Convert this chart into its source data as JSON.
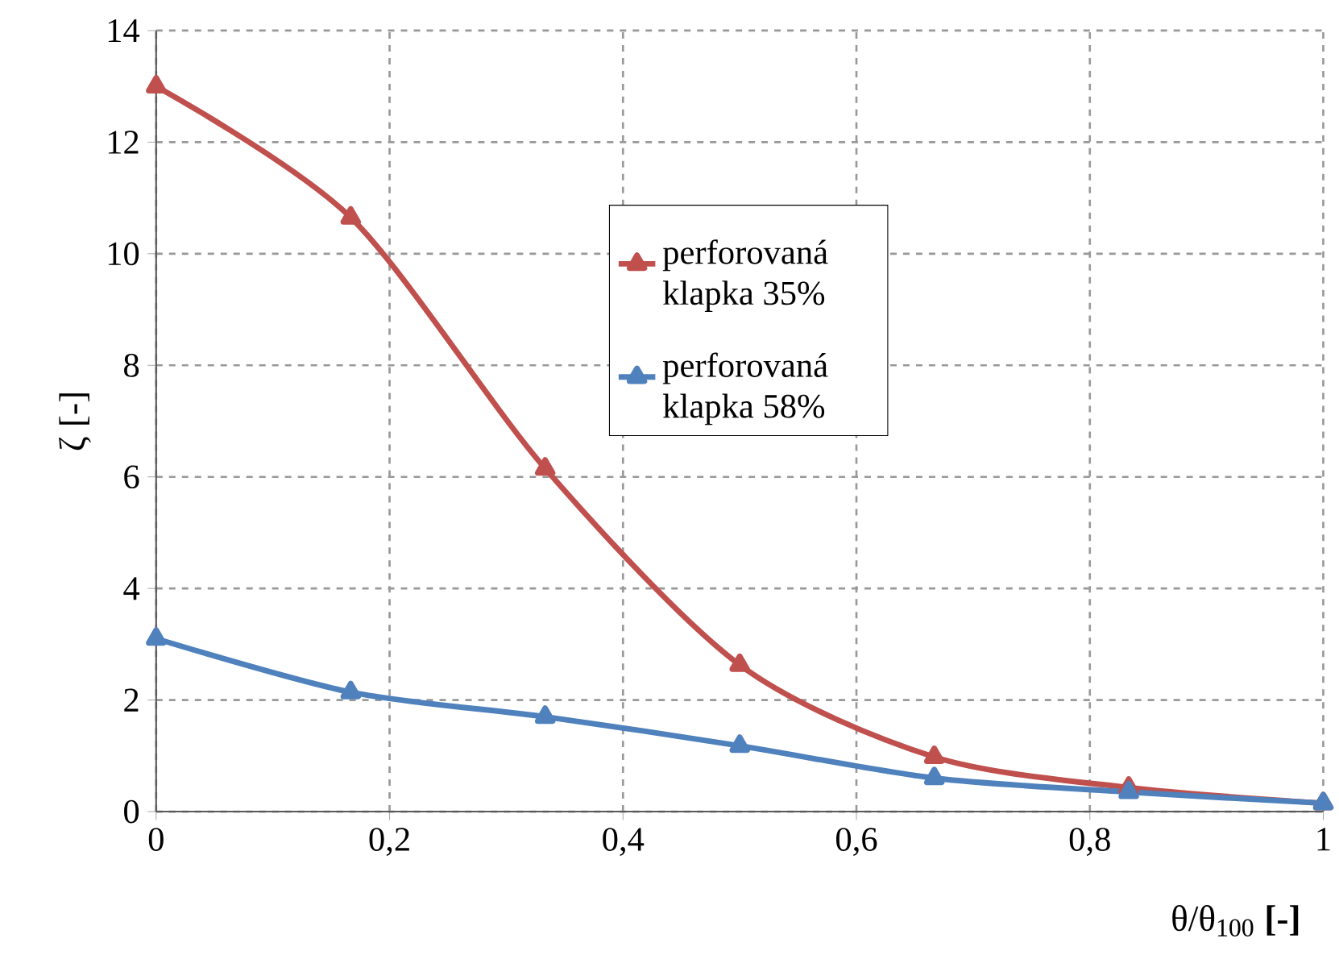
{
  "chart_data": {
    "type": "line",
    "xlabel": "θ/θ$_{100}$ **[-]**",
    "ylabel": "ζ [-]",
    "x": [
      0,
      0.1667,
      0.3333,
      0.5,
      0.6667,
      0.8333,
      1
    ],
    "series": [
      {
        "name": "perforovaná klapka 35%",
        "color": "#c0504d",
        "values": [
          13.0,
          10.65,
          6.15,
          2.63,
          0.98,
          0.43,
          0.15
        ]
      },
      {
        "name": "perforovaná klapka 58%",
        "color": "#4f81bd",
        "values": [
          3.1,
          2.14,
          1.7,
          1.18,
          0.6,
          0.35,
          0.15
        ]
      }
    ],
    "xlim": [
      0,
      1
    ],
    "ylim": [
      0,
      14
    ],
    "xticks": [
      0,
      {
        "value": 0.2,
        "label": "0,2"
      },
      {
        "value": 0.4,
        "label": "0,4"
      },
      {
        "value": 0.6,
        "label": "0,6"
      },
      {
        "value": 0.8,
        "label": "0,8"
      },
      1
    ],
    "yticks": [
      0,
      2,
      4,
      6,
      8,
      10,
      12,
      14
    ],
    "grid": true,
    "legend": "top",
    "marker": "triangle",
    "line_style": "solid"
  }
}
